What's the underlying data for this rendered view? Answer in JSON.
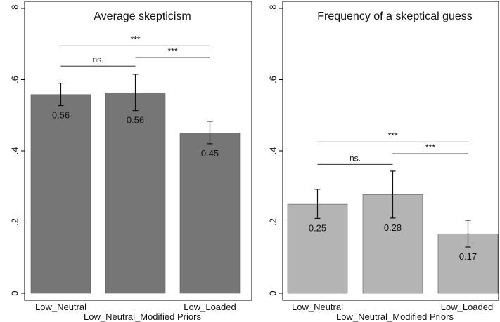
{
  "chart_data": [
    {
      "type": "bar",
      "title": "Average skepticism",
      "categories": [
        "Low_Neutral",
        "Low_Neutral_Modified",
        "Low_Loaded"
      ],
      "x_tick_labels": [
        "Low_Neutral",
        "Low_Loaded"
      ],
      "xlabel": "Low_Neutral_Modified Priors",
      "values": [
        0.558,
        0.563,
        0.45
      ],
      "value_labels": [
        "0.56",
        "0.56",
        "0.45"
      ],
      "error_bars": [
        {
          "low": 0.527,
          "high": 0.59
        },
        {
          "low": 0.513,
          "high": 0.615
        },
        {
          "low": 0.42,
          "high": 0.483
        }
      ],
      "significance": [
        {
          "from": 0,
          "to": 1,
          "label": "ns.",
          "y": 0.638
        },
        {
          "from": 1,
          "to": 2,
          "label": "***",
          "y": 0.662
        },
        {
          "from": 0,
          "to": 2,
          "label": "***",
          "y": 0.695
        }
      ],
      "ylim": [
        0,
        0.8
      ],
      "yticks": [
        0,
        0.2,
        0.4,
        0.6,
        0.8
      ],
      "ytick_labels": [
        "0",
        ".2",
        ".4",
        ".6",
        ".8"
      ],
      "bar_color": "#767676",
      "grid": false
    },
    {
      "type": "bar",
      "title": "Frequency of a skeptical guess",
      "categories": [
        "Low_Neutral",
        "Low_Neutral_Modified",
        "Low_Loaded"
      ],
      "x_tick_labels": [
        "Low_Neutral",
        "Low_Loaded"
      ],
      "xlabel": "Low_Neutral_Modified Priors",
      "values": [
        0.25,
        0.277,
        0.167
      ],
      "value_labels": [
        "0.25",
        "0.28",
        "0.17"
      ],
      "error_bars": [
        {
          "low": 0.21,
          "high": 0.292
        },
        {
          "low": 0.211,
          "high": 0.343
        },
        {
          "low": 0.13,
          "high": 0.205
        }
      ],
      "significance": [
        {
          "from": 0,
          "to": 1,
          "label": "ns.",
          "y": 0.362
        },
        {
          "from": 1,
          "to": 2,
          "label": "***",
          "y": 0.392
        },
        {
          "from": 0,
          "to": 2,
          "label": "***",
          "y": 0.425
        }
      ],
      "ylim": [
        0,
        0.8
      ],
      "yticks": [
        0,
        0.2,
        0.4,
        0.6,
        0.8
      ],
      "ytick_labels": [
        "0",
        ".2",
        ".4",
        ".6",
        ".8"
      ],
      "bar_color": "#b4b4b4",
      "grid": false
    }
  ]
}
